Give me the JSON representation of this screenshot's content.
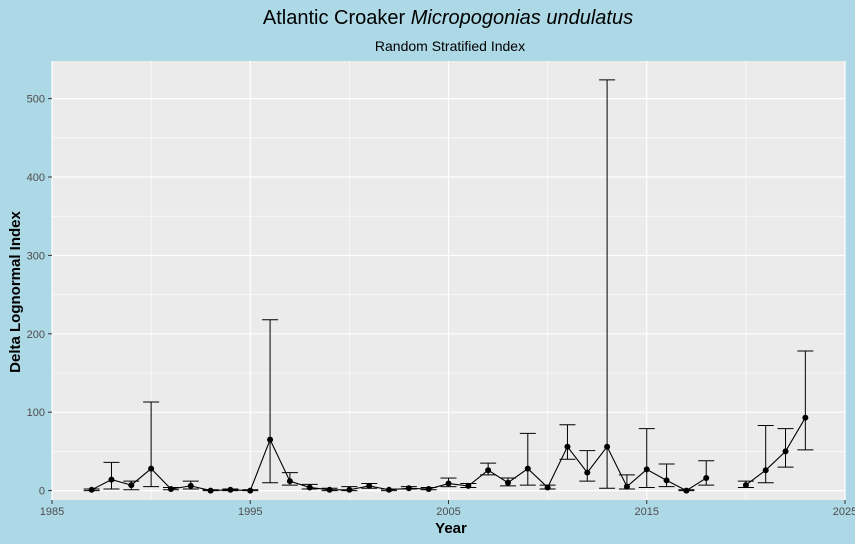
{
  "chart_data": {
    "type": "line",
    "title_plain": "Atlantic Croaker ",
    "title_italic": "Micropogonias undulatus",
    "subtitle": "Random Stratified Index",
    "xlabel": "Year",
    "ylabel": "Delta Lognormal Index",
    "xlim": [
      1985,
      2025
    ],
    "ylim": [
      -12,
      548
    ],
    "x_ticks": [
      1985,
      1995,
      2005,
      2015,
      2025
    ],
    "y_ticks": [
      0,
      100,
      200,
      300,
      400,
      500
    ],
    "grid": true,
    "legend": "none",
    "colors": {
      "background": "#add8e6",
      "panel": "#ebebeb",
      "grid": "#ffffff",
      "line": "#000000"
    },
    "series": [
      {
        "points": [
          {
            "x": 1987,
            "y": 1,
            "lo": 0,
            "hi": 2
          },
          {
            "x": 1988,
            "y": 14,
            "lo": 2,
            "hi": 36
          },
          {
            "x": 1989,
            "y": 7,
            "lo": 1,
            "hi": 12
          },
          {
            "x": 1990,
            "y": 28,
            "lo": 5,
            "hi": 113
          },
          {
            "x": 1991,
            "y": 2,
            "lo": 1,
            "hi": 4
          },
          {
            "x": 1992,
            "y": 6,
            "lo": 2,
            "hi": 12
          },
          {
            "x": 1993,
            "y": 0,
            "lo": 0,
            "hi": 1
          },
          {
            "x": 1994,
            "y": 1,
            "lo": 0,
            "hi": 2
          },
          {
            "x": 1995,
            "y": 0,
            "lo": 0,
            "hi": 1
          },
          {
            "x": 1996,
            "y": 65,
            "lo": 10,
            "hi": 218
          },
          {
            "x": 1997,
            "y": 12,
            "lo": 7,
            "hi": 23
          },
          {
            "x": 1998,
            "y": 4,
            "lo": 2,
            "hi": 8
          },
          {
            "x": 1999,
            "y": 1,
            "lo": 0,
            "hi": 3
          },
          {
            "x": 2000,
            "y": 1,
            "lo": 0,
            "hi": 5
          },
          {
            "x": 2001,
            "y": 6,
            "lo": 3,
            "hi": 9
          },
          {
            "x": 2002,
            "y": 1,
            "lo": 0,
            "hi": 2
          },
          {
            "x": 2003,
            "y": 3,
            "lo": 2,
            "hi": 5
          },
          {
            "x": 2004,
            "y": 2,
            "lo": 1,
            "hi": 4
          },
          {
            "x": 2005,
            "y": 9,
            "lo": 5,
            "hi": 16
          },
          {
            "x": 2006,
            "y": 6,
            "lo": 4,
            "hi": 9
          },
          {
            "x": 2007,
            "y": 26,
            "lo": 20,
            "hi": 35
          },
          {
            "x": 2008,
            "y": 10,
            "lo": 6,
            "hi": 16
          },
          {
            "x": 2009,
            "y": 28,
            "lo": 7,
            "hi": 73
          },
          {
            "x": 2010,
            "y": 4,
            "lo": 2,
            "hi": 7
          },
          {
            "x": 2011,
            "y": 56,
            "lo": 40,
            "hi": 84
          },
          {
            "x": 2012,
            "y": 23,
            "lo": 12,
            "hi": 51
          },
          {
            "x": 2013,
            "y": 56,
            "lo": 3,
            "hi": 524
          },
          {
            "x": 2014,
            "y": 5,
            "lo": 2,
            "hi": 20
          },
          {
            "x": 2015,
            "y": 27,
            "lo": 4,
            "hi": 79
          },
          {
            "x": 2016,
            "y": 13,
            "lo": 5,
            "hi": 34
          },
          {
            "x": 2017,
            "y": 0,
            "lo": 0,
            "hi": 1
          },
          {
            "x": 2018,
            "y": 16,
            "lo": 7,
            "hi": 38
          }
        ]
      },
      {
        "points": [
          {
            "x": 2020,
            "y": 7,
            "lo": 4,
            "hi": 12
          },
          {
            "x": 2021,
            "y": 26,
            "lo": 10,
            "hi": 83
          },
          {
            "x": 2022,
            "y": 50,
            "lo": 30,
            "hi": 79
          },
          {
            "x": 2023,
            "y": 93,
            "lo": 52,
            "hi": 178
          }
        ]
      }
    ]
  }
}
